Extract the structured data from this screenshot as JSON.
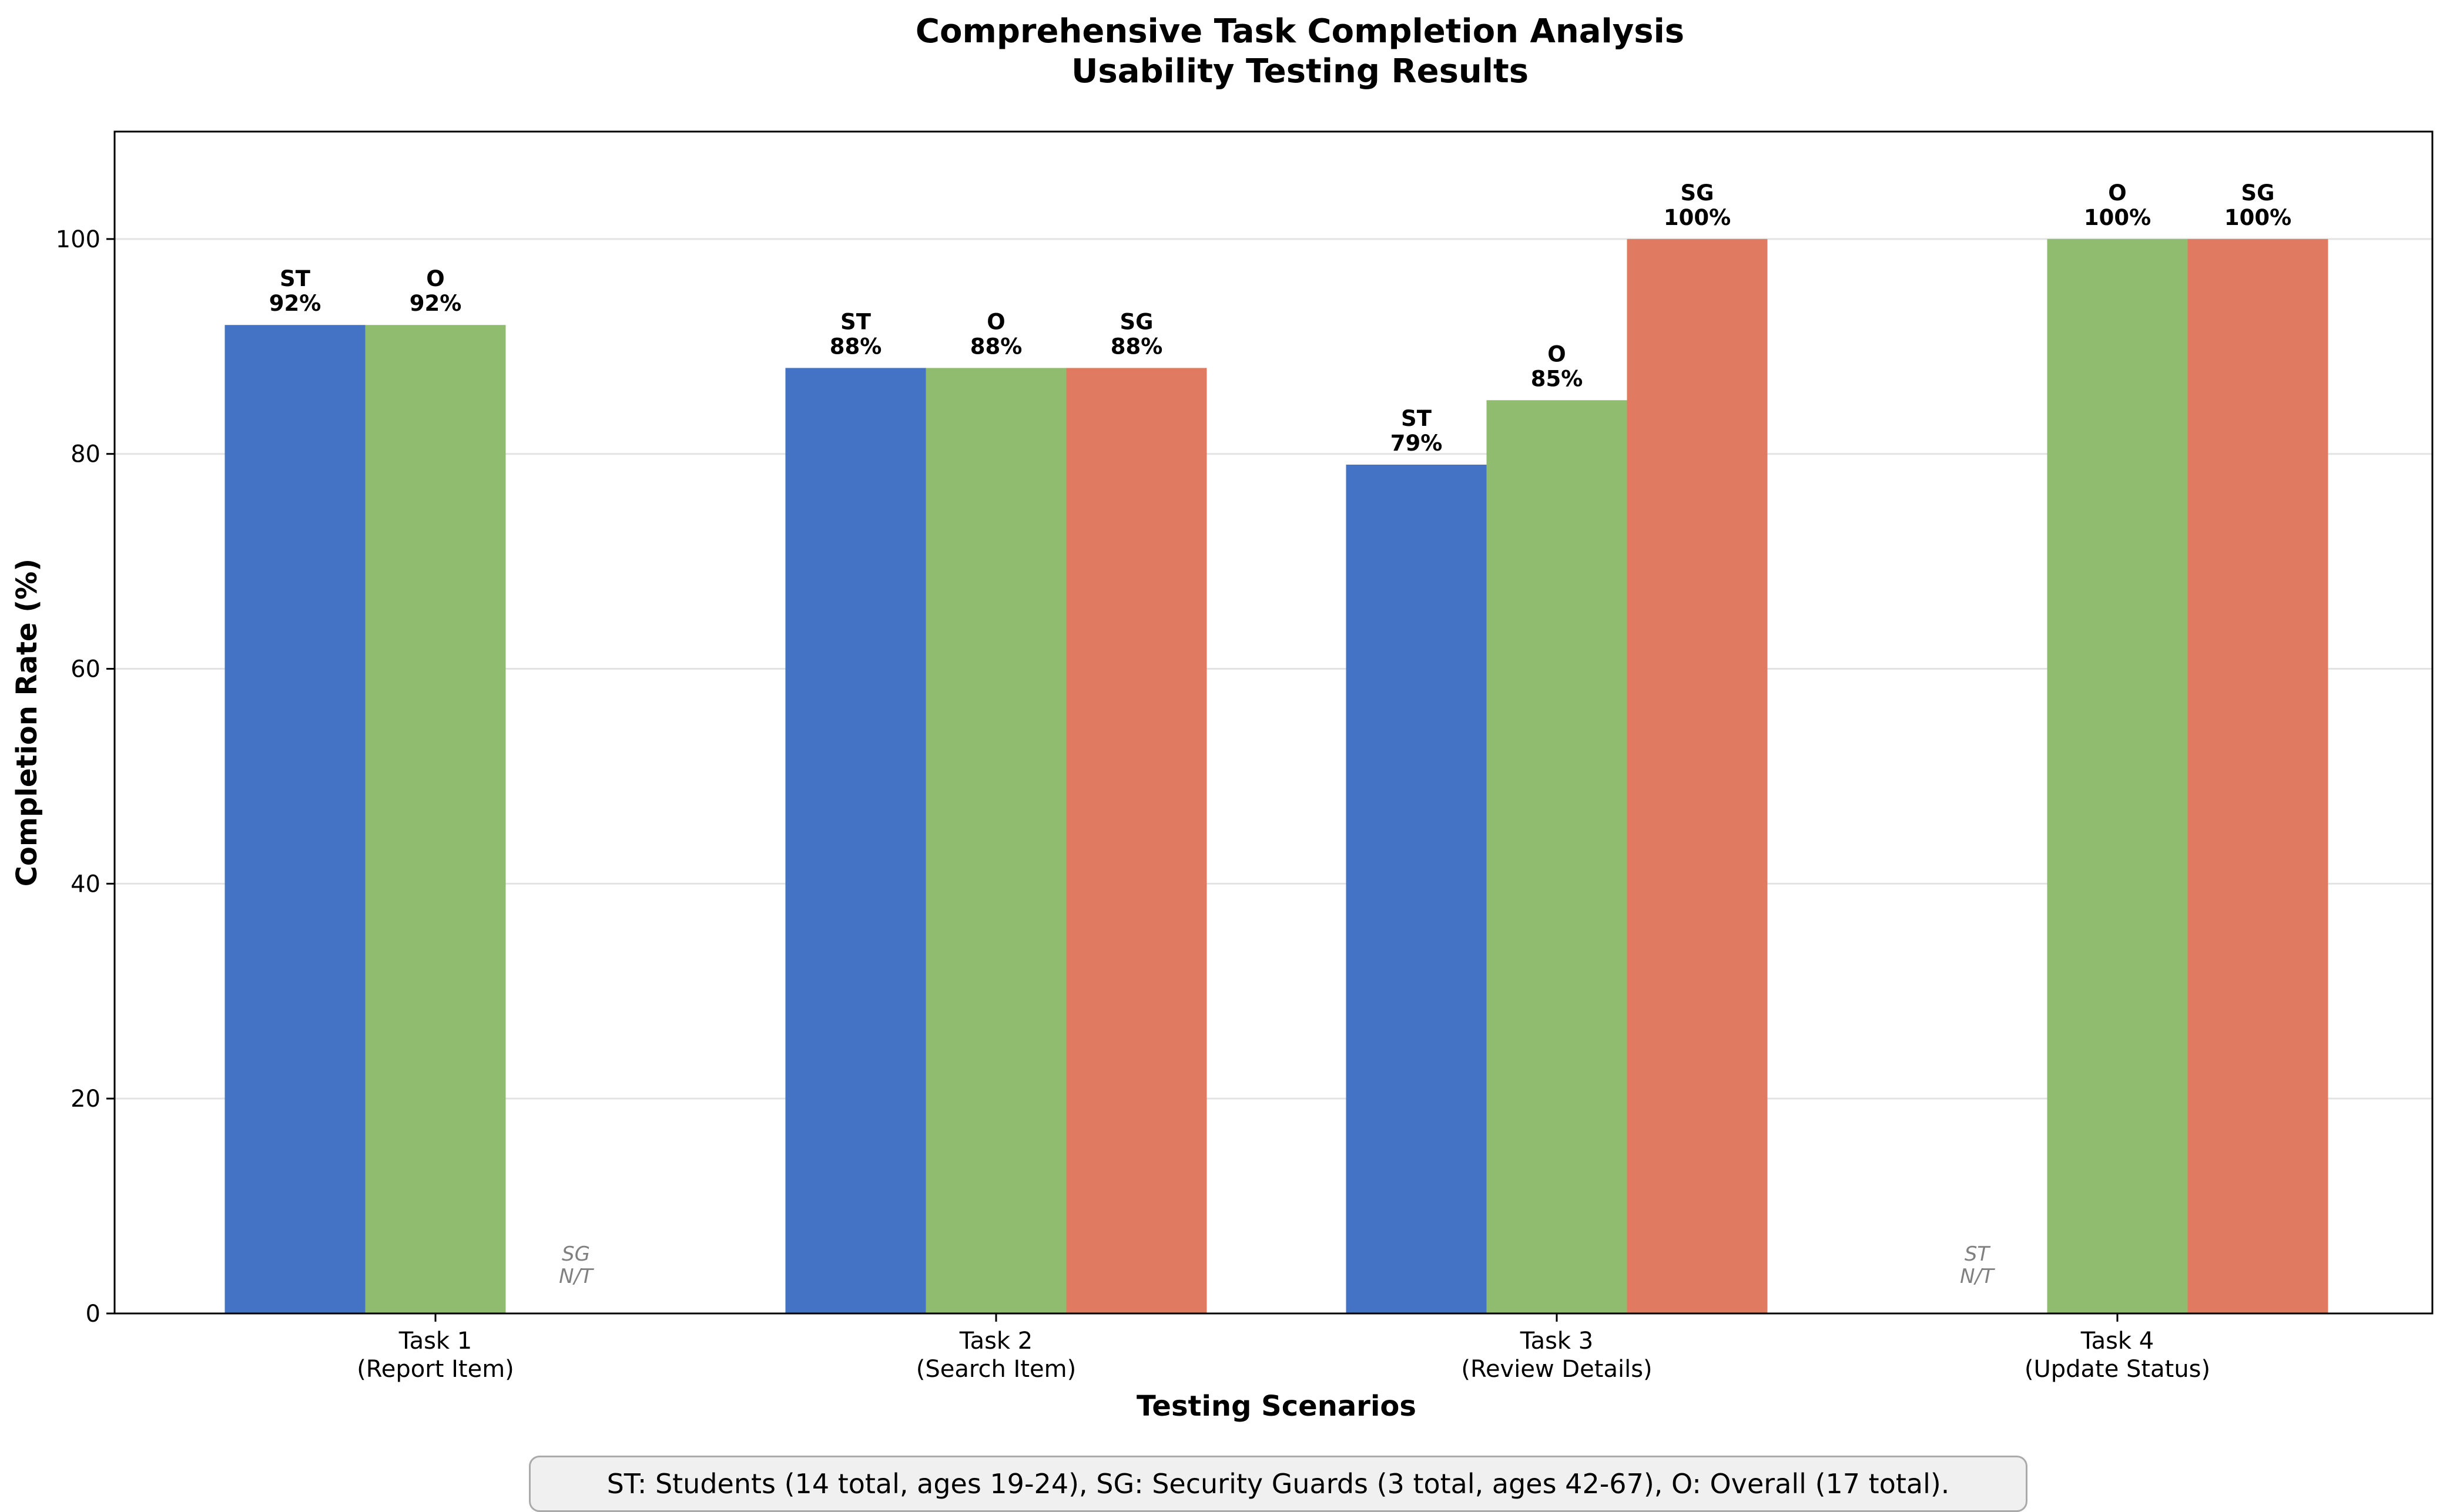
{
  "chart_data": {
    "type": "bar",
    "title": [
      "Comprehensive Task Completion Analysis",
      "Usability Testing Results"
    ],
    "xlabel": "Testing Scenarios",
    "ylabel": "Completion Rate (%)",
    "ylim": [
      0,
      110
    ],
    "yticks": [
      0,
      20,
      40,
      60,
      80,
      100
    ],
    "grid": "y",
    "categories": [
      [
        "Task 1",
        "(Report Item)"
      ],
      [
        "Task 2",
        "(Search Item)"
      ],
      [
        "Task 3",
        "(Review Details)"
      ],
      [
        "Task 4",
        "(Update Status)"
      ]
    ],
    "series": [
      {
        "name": "ST",
        "color": "#4472c4",
        "values": [
          92,
          88,
          79,
          null
        ]
      },
      {
        "name": "O",
        "color": "#8fbc6f",
        "values": [
          92,
          88,
          85,
          100
        ]
      },
      {
        "name": "SG",
        "color": "#e07b62",
        "values": [
          null,
          88,
          100,
          100
        ]
      }
    ],
    "missing_label": "N/T",
    "footnote": "ST: Students (14 total, ages 19-24), SG: Security Guards (3 total, ages 42-67), O: Overall (17 total)."
  }
}
